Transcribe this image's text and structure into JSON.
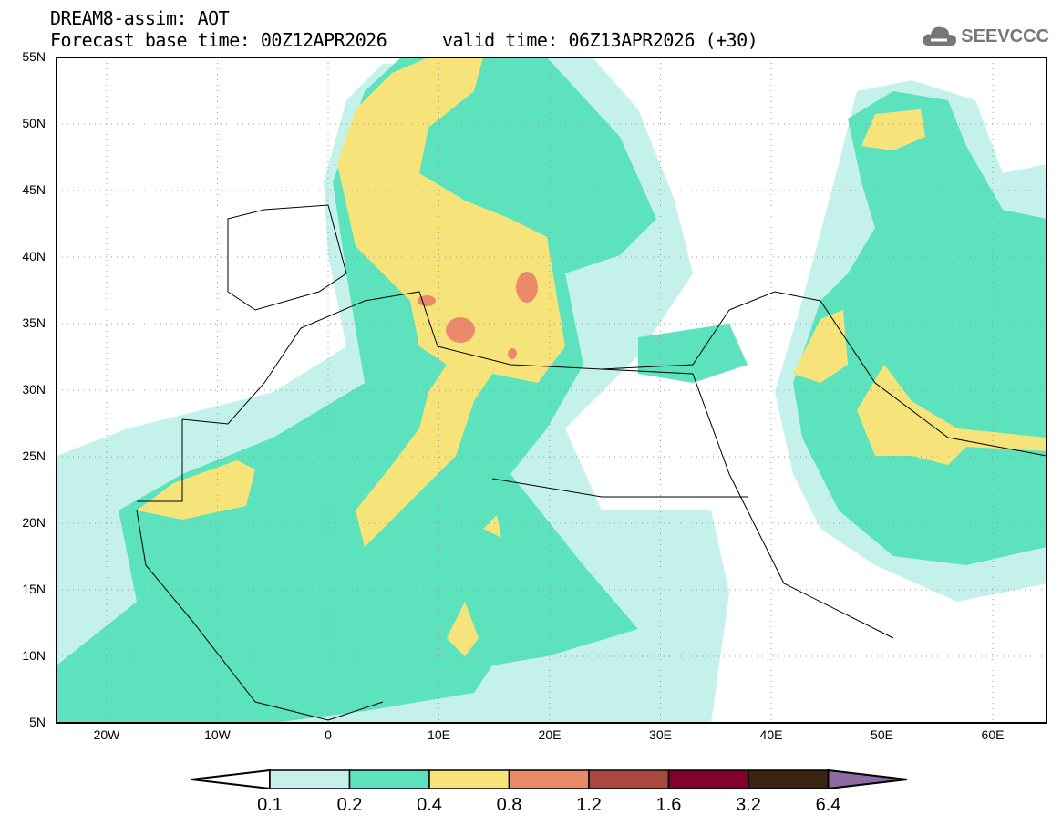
{
  "header": {
    "title": "DREAM8-assim: AOT",
    "base_time": "Forecast base time: 00Z12APR2026",
    "valid_time": "valid time: 06Z13APR2026 (+30)",
    "logo_text": "SEEVCCC"
  },
  "axes": {
    "lat_labels": [
      "55N",
      "50N",
      "45N",
      "40N",
      "35N",
      "30N",
      "25N",
      "20N",
      "15N",
      "10N",
      "5N"
    ],
    "lon_labels": [
      "20W",
      "10W",
      "0",
      "10E",
      "20E",
      "30E",
      "40E",
      "50E",
      "60E"
    ]
  },
  "colorbar": {
    "levels": [
      "0.1",
      "0.2",
      "0.4",
      "0.8",
      "1.2",
      "1.6",
      "3.2",
      "6.4"
    ],
    "colors": [
      "#c4f2ea",
      "#5ce3bd",
      "#f6e47a",
      "#ea8a6a",
      "#a9483f",
      "#82002c",
      "#3b2312",
      "#8d6aa0"
    ]
  }
}
